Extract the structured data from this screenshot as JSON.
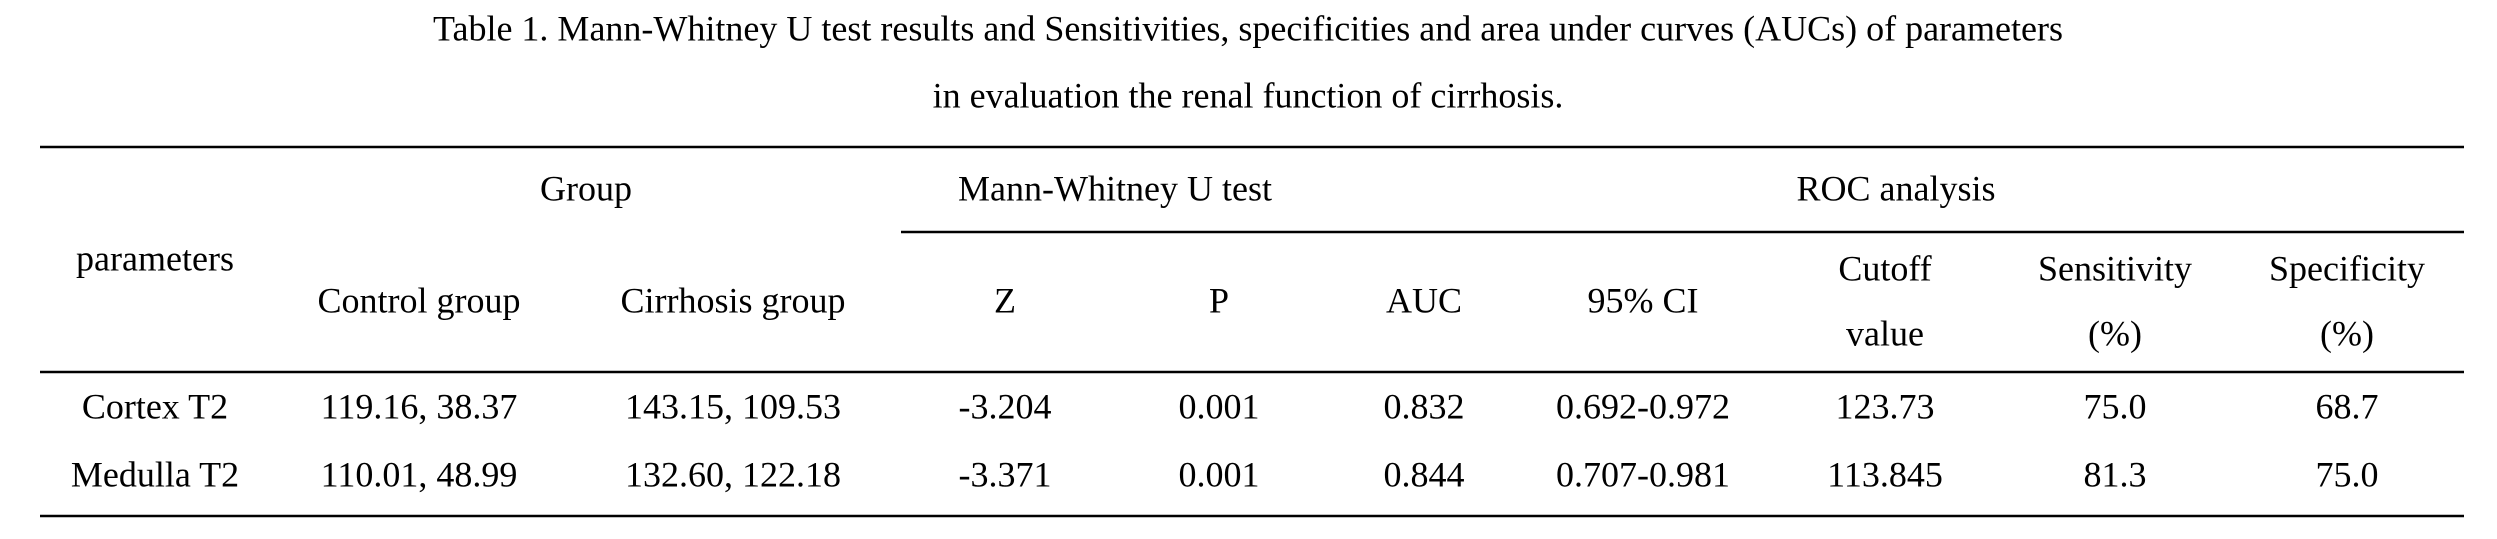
{
  "caption": {
    "lines": [
      "Table 1.    Mann-Whitney U test results and Sensitivities, specificities and area under curves (AUCs) of parameters",
      "in evaluation the renal function of cirrhosis."
    ]
  },
  "table": {
    "group_headers": {
      "parameters": "parameters",
      "group": "Group",
      "mwu": "Mann-Whitney U test",
      "roc": "ROC analysis"
    },
    "columns": [
      {
        "lines": [
          "Control group"
        ]
      },
      {
        "lines": [
          "Cirrhosis group"
        ]
      },
      {
        "lines": [
          "Z"
        ]
      },
      {
        "lines": [
          "P"
        ]
      },
      {
        "lines": [
          "AUC"
        ]
      },
      {
        "lines": [
          "95% CI"
        ]
      },
      {
        "lines": [
          "Cutoff",
          "value"
        ]
      },
      {
        "lines": [
          "Sensitivity",
          "(%)"
        ]
      },
      {
        "lines": [
          "Specificity",
          "(%)"
        ]
      }
    ],
    "rows": [
      [
        "Cortex T2",
        "119.16, 38.37",
        "143.15, 109.53",
        "-3.204",
        "0.001",
        "0.832",
        "0.692-0.972",
        "123.73",
        "75.0",
        "68.7"
      ],
      [
        "Medulla T2",
        "110.01, 48.99",
        "132.60, 122.18",
        "-3.371",
        "0.001",
        "0.844",
        "0.707-0.981",
        "113.845",
        "81.3",
        "75.0"
      ]
    ]
  }
}
